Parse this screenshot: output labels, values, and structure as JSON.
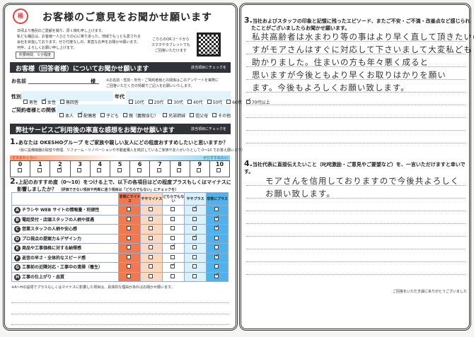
{
  "header": {
    "title": "お客様のご意見をお聞かせ願います",
    "stamp": "桶庄",
    "intro": [
      "日頃より格別のご愛顧を賜り、厚く御礼申し上げます。",
      "私ども桶庄は、お客様一人ひとりの心に寄り添った、地域でもっとも愛される",
      "会社を目指しております。ぜひ忖度なしの、率直なお声をお聞かせ願います。",
      "何卒、よろしくお願い申し上げます。"
    ],
    "time": "所要時間　５分程度",
    "qr_text": [
      "こちらのQRコードから",
      "スマホやタブレットでも",
      "ご回答いただけます"
    ]
  },
  "section1": {
    "title": "お客様（回答者様）についてお聞かせ願います",
    "note": "該当項目にチェックを",
    "name_label": "お名前",
    "name_suffix": "様",
    "name_note": [
      "※お名前・性別・年代・ご契約者様との関係はこのアンケートを実際に",
      "ご回答いただく方の情報でご記入をお願いいたします。"
    ],
    "gender_label": "性別",
    "gender": [
      {
        "label": "男性",
        "checked": false
      },
      {
        "label": "女性",
        "checked": true
      },
      {
        "label": "無回答",
        "checked": false
      }
    ],
    "age_label": "年代",
    "ages": [
      {
        "label": "10代",
        "checked": false
      },
      {
        "label": "20代",
        "checked": false
      },
      {
        "label": "30代",
        "checked": false
      },
      {
        "label": "40代",
        "checked": false
      },
      {
        "label": "50代",
        "checked": false
      },
      {
        "label": "60代",
        "checked": false
      },
      {
        "label": "70代以上",
        "checked": true
      }
    ],
    "relation_label": "ご契約者様との関係",
    "relations": [
      {
        "label": "本人",
        "checked": false
      },
      {
        "label": "配偶者",
        "checked": true
      },
      {
        "label": "子ども",
        "checked": false
      },
      {
        "label": "親（義親含む）",
        "checked": false
      },
      {
        "label": "兄弟姉妹",
        "checked": false
      },
      {
        "label": "祖父母",
        "checked": false
      },
      {
        "label": "その他",
        "checked": false
      }
    ]
  },
  "section2": {
    "title": "弊社サービスご利用後の率直な感想をお聞かせ願います",
    "note": "該当項目にチェックを"
  },
  "q1": {
    "num": "1.",
    "text": "あなたは OKESHOグループ をご家族や親しい友人にどの程度おすすめしたいと思いますか？",
    "sub": "（仮に設備機器の取替や修理、リフォーム・リノベーションや不動産購入を検討しているご家族や友人がいたとして 0〜10 でお答え願います）",
    "low": "すすめたくない",
    "high": "ぜひすすめたい",
    "scale": [
      "0",
      "1",
      "2",
      "3",
      "4",
      "5",
      "6",
      "7",
      "8",
      "9",
      "10"
    ],
    "selected": 2
  },
  "q2": {
    "num": "2.",
    "text": "上記のおすすめ度（0〜10）をつける上で、以下の各項目はどの程度プラスもしくはマイナスに",
    "text2": "影響しましたか？",
    "sub": "（評価できない項目や判断に迷う項目は「どちらでもない」にチェックを）",
    "columns": [
      "非常にマイナス",
      "ややマイナス",
      "どちらでもない",
      "ややプラス",
      "非常にプラス"
    ],
    "column_colors": [
      "#f07a50",
      "#fbd9c0",
      "#ffffff",
      "#d9f1fb",
      "#4fb2ea"
    ],
    "rows": [
      {
        "letter": "A",
        "label": "チラシや WEB サイトの情報量・利便性",
        "selected": 3
      },
      {
        "letter": "B",
        "label": "電話受付・店頭スタッフの人柄や接遇",
        "selected": 4
      },
      {
        "letter": "C",
        "label": "営業スタッフの人柄や安心感",
        "selected": 4
      },
      {
        "letter": "D",
        "label": "プロ視点の提案力＆デザイン力",
        "selected": 3
      },
      {
        "letter": "E",
        "label": "商品や工事価格に対する納得感",
        "selected": 2
      },
      {
        "letter": "F",
        "label": "返信の早さ・全体的なスピード感",
        "selected": 4
      },
      {
        "letter": "G",
        "label": "工事前の近隣対応・工事中の清掃（養生）",
        "selected": 2
      },
      {
        "letter": "H",
        "label": "工事の仕上がり・品質",
        "selected": 4
      }
    ],
    "note": "※A〜Hの設問でプラスもしくはマイナスに影響した項目は、具体的な理由があればお聞かせ願います。"
  },
  "q3": {
    "num": "3.",
    "text": "当社およびスタッフの印象と記憶に残ったエピソード、またご不安・ご不満・改善点など感じられ",
    "text2": "たことがございましたらお聞かせ願います。",
    "answer": [
      "私共高齢者は水まわり等の事はより早く直して頂きたいので",
      "すがモアさんはすぐに対応して下さいまして大変私ども",
      "助かりました。住まいの方も年々悪く成ると",
      "思いますが今後ともより早くお取りはかりを願い",
      "ます。今後もよろしくお願い致します。"
    ]
  },
  "q4": {
    "num": "4.",
    "text": "当社代表に直接伝えたいこと（叱咤激励・ご意見やご要望など）を、一言いただけますと幸いです。",
    "answer": [
      "モアさんを信用しておりますので今後共よろしく",
      "お願い致します。"
    ]
  },
  "footer": "ご回答をいただき誠にありがとうございました"
}
